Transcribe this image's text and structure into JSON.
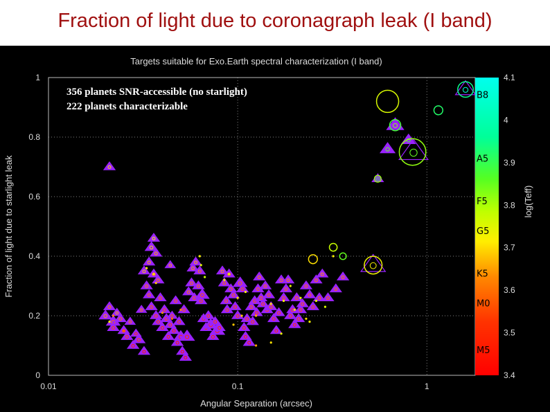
{
  "slide_title": "Fraction of light due to coronagraph leak (I band)",
  "colors": {
    "title": "#a01010",
    "background": "#000000",
    "triangle": "#9a22ff",
    "grid": "#7f7f7f"
  },
  "chart_data": {
    "type": "scatter",
    "title": "Targets suitable for Exo.Earth spectral characterization (I band)",
    "xlabel": "Angular Separation (arcsec)",
    "ylabel": "Fraction of light due to starlight leak",
    "x_scale": "log",
    "xlim": [
      0.01,
      1.8
    ],
    "ylim": [
      0,
      1
    ],
    "x_ticks": [
      {
        "v": 0.01,
        "label": "0.01"
      },
      {
        "v": 0.1,
        "label": "0.1"
      },
      {
        "v": 1,
        "label": "1"
      }
    ],
    "y_ticks": [
      {
        "v": 0,
        "label": "0"
      },
      {
        "v": 0.2,
        "label": "0.2"
      },
      {
        "v": 0.4,
        "label": "0.4"
      },
      {
        "v": 0.6,
        "label": "0.6"
      },
      {
        "v": 0.8,
        "label": "0.8"
      },
      {
        "v": 1,
        "label": "1"
      }
    ],
    "grid": true,
    "annotations": [
      "356  planets SNR-accessible (no starlight)",
      "222 planets characterizable"
    ],
    "colorbar": {
      "label": "log(Teff)",
      "range": [
        3.4,
        4.1
      ],
      "ticks": [
        {
          "v": 4.1,
          "label": "4.1"
        },
        {
          "v": 4.0,
          "label": "4"
        },
        {
          "v": 3.9,
          "label": "3.9"
        },
        {
          "v": 3.8,
          "label": "3.8"
        },
        {
          "v": 3.7,
          "label": "3.7"
        },
        {
          "v": 3.6,
          "label": "3.6"
        },
        {
          "v": 3.5,
          "label": "3.5"
        },
        {
          "v": 3.4,
          "label": "3.4"
        }
      ],
      "spectral_types": [
        {
          "label": "B8",
          "v": 4.06
        },
        {
          "label": "A5",
          "v": 3.91
        },
        {
          "label": "F5",
          "v": 3.81
        },
        {
          "label": "G5",
          "v": 3.74
        },
        {
          "label": "K5",
          "v": 3.64
        },
        {
          "label": "M0",
          "v": 3.57
        },
        {
          "label": "M5",
          "v": 3.46
        }
      ]
    },
    "series": [
      {
        "kind": "triangle",
        "points": [
          [
            0.021,
            0.7,
            3.7,
            1.0
          ],
          [
            0.02,
            0.2,
            3.65,
            1.1
          ],
          [
            0.021,
            0.23,
            3.62,
            1.0
          ],
          [
            0.022,
            0.18,
            3.6,
            1.2
          ],
          [
            0.023,
            0.21,
            3.66,
            0.9
          ],
          [
            0.022,
            0.16,
            3.55,
            1.0
          ],
          [
            0.024,
            0.19,
            3.6,
            1.0
          ],
          [
            0.025,
            0.15,
            3.58,
            1.0
          ],
          [
            0.026,
            0.13,
            3.55,
            1.0
          ],
          [
            0.027,
            0.18,
            3.6,
            0.9
          ],
          [
            0.028,
            0.1,
            3.5,
            1.0
          ],
          [
            0.029,
            0.14,
            3.52,
            0.9
          ],
          [
            0.03,
            0.12,
            3.55,
            1.1
          ],
          [
            0.031,
            0.22,
            3.62,
            0.9
          ],
          [
            0.032,
            0.08,
            3.48,
            1.0
          ],
          [
            0.032,
            0.35,
            3.68,
            1.0
          ],
          [
            0.033,
            0.3,
            3.62,
            1.0
          ],
          [
            0.034,
            0.38,
            3.66,
            1.0
          ],
          [
            0.034,
            0.27,
            3.6,
            1.0
          ],
          [
            0.035,
            0.23,
            3.58,
            1.0
          ],
          [
            0.035,
            0.43,
            3.7,
            1.1
          ],
          [
            0.036,
            0.46,
            3.72,
            1.0
          ],
          [
            0.036,
            0.34,
            3.64,
            1.0
          ],
          [
            0.037,
            0.41,
            3.66,
            1.0
          ],
          [
            0.037,
            0.2,
            3.56,
            1.0
          ],
          [
            0.038,
            0.32,
            3.62,
            1.0
          ],
          [
            0.038,
            0.18,
            3.55,
            1.0
          ],
          [
            0.039,
            0.26,
            3.58,
            1.0
          ],
          [
            0.04,
            0.16,
            3.52,
            1.0
          ],
          [
            0.041,
            0.22,
            3.56,
            1.0
          ],
          [
            0.042,
            0.19,
            3.56,
            1.0
          ],
          [
            0.043,
            0.13,
            3.5,
            1.0
          ],
          [
            0.044,
            0.37,
            3.65,
            0.9
          ],
          [
            0.044,
            0.17,
            3.55,
            1.0
          ],
          [
            0.045,
            0.2,
            3.58,
            0.9
          ],
          [
            0.046,
            0.15,
            3.52,
            1.0
          ],
          [
            0.047,
            0.25,
            3.58,
            1.0
          ],
          [
            0.048,
            0.11,
            3.5,
            1.0
          ],
          [
            0.049,
            0.18,
            3.55,
            1.0
          ],
          [
            0.05,
            0.13,
            3.5,
            1.2
          ],
          [
            0.051,
            0.08,
            3.46,
            1.0
          ],
          [
            0.052,
            0.22,
            3.58,
            1.0
          ],
          [
            0.053,
            0.06,
            3.45,
            1.0
          ],
          [
            0.054,
            0.13,
            3.5,
            1.3
          ],
          [
            0.055,
            0.28,
            3.62,
            1.0
          ],
          [
            0.057,
            0.31,
            3.6,
            1.0
          ],
          [
            0.058,
            0.36,
            3.64,
            1.0
          ],
          [
            0.059,
            0.26,
            3.58,
            1.0
          ],
          [
            0.06,
            0.38,
            3.66,
            1.0
          ],
          [
            0.062,
            0.3,
            3.6,
            1.0
          ],
          [
            0.063,
            0.35,
            3.62,
            1.0
          ],
          [
            0.064,
            0.25,
            3.56,
            1.0
          ],
          [
            0.065,
            0.27,
            3.57,
            1.2
          ],
          [
            0.066,
            0.19,
            3.52,
            1.0
          ],
          [
            0.068,
            0.16,
            3.52,
            1.0
          ],
          [
            0.07,
            0.2,
            3.55,
            1.0
          ],
          [
            0.072,
            0.17,
            3.52,
            1.2
          ],
          [
            0.074,
            0.13,
            3.5,
            1.0
          ],
          [
            0.076,
            0.18,
            3.54,
            1.0
          ],
          [
            0.078,
            0.15,
            3.5,
            1.3
          ],
          [
            0.08,
            0.16,
            3.52,
            1.0
          ],
          [
            0.083,
            0.35,
            3.64,
            1.0
          ],
          [
            0.085,
            0.31,
            3.6,
            1.0
          ],
          [
            0.087,
            0.25,
            3.58,
            1.0
          ],
          [
            0.088,
            0.22,
            3.56,
            1.0
          ],
          [
            0.09,
            0.34,
            3.62,
            1.0
          ],
          [
            0.092,
            0.29,
            3.6,
            1.0
          ],
          [
            0.095,
            0.27,
            3.58,
            1.0
          ],
          [
            0.097,
            0.23,
            3.55,
            1.0
          ],
          [
            0.1,
            0.2,
            3.55,
            1.0
          ],
          [
            0.103,
            0.31,
            3.6,
            1.2
          ],
          [
            0.106,
            0.29,
            3.58,
            1.0
          ],
          [
            0.108,
            0.16,
            3.52,
            1.0
          ],
          [
            0.11,
            0.13,
            3.5,
            1.0
          ],
          [
            0.112,
            0.19,
            3.55,
            1.0
          ],
          [
            0.115,
            0.11,
            3.48,
            1.0
          ],
          [
            0.118,
            0.23,
            3.58,
            1.0
          ],
          [
            0.12,
            0.18,
            3.54,
            1.0
          ],
          [
            0.123,
            0.25,
            3.57,
            1.0
          ],
          [
            0.126,
            0.21,
            3.55,
            1.0
          ],
          [
            0.128,
            0.29,
            3.6,
            1.0
          ],
          [
            0.13,
            0.33,
            3.62,
            1.0
          ],
          [
            0.133,
            0.26,
            3.58,
            1.0
          ],
          [
            0.136,
            0.24,
            3.56,
            1.0
          ],
          [
            0.14,
            0.3,
            3.6,
            1.0
          ],
          [
            0.143,
            0.22,
            3.56,
            1.0
          ],
          [
            0.146,
            0.27,
            3.58,
            1.0
          ],
          [
            0.15,
            0.23,
            3.58,
            1.0
          ],
          [
            0.155,
            0.19,
            3.54,
            1.0
          ],
          [
            0.16,
            0.15,
            3.52,
            1.0
          ],
          [
            0.165,
            0.21,
            3.55,
            1.0
          ],
          [
            0.17,
            0.32,
            3.62,
            1.0
          ],
          [
            0.175,
            0.26,
            3.58,
            1.0
          ],
          [
            0.18,
            0.29,
            3.6,
            1.0
          ],
          [
            0.185,
            0.32,
            3.62,
            1.0
          ],
          [
            0.19,
            0.2,
            3.55,
            1.0
          ],
          [
            0.195,
            0.22,
            3.56,
            1.0
          ],
          [
            0.2,
            0.17,
            3.52,
            1.0
          ],
          [
            0.205,
            0.26,
            3.58,
            1.0
          ],
          [
            0.21,
            0.19,
            3.55,
            1.0
          ],
          [
            0.215,
            0.22,
            3.56,
            1.0
          ],
          [
            0.22,
            0.24,
            3.57,
            1.0
          ],
          [
            0.23,
            0.3,
            3.6,
            1.0
          ],
          [
            0.24,
            0.27,
            3.58,
            1.0
          ],
          [
            0.25,
            0.23,
            3.57,
            1.0
          ],
          [
            0.26,
            0.32,
            3.62,
            1.0
          ],
          [
            0.27,
            0.26,
            3.58,
            1.0
          ],
          [
            0.28,
            0.34,
            3.64,
            1.0
          ],
          [
            0.3,
            0.26,
            3.58,
            1.0
          ],
          [
            0.33,
            0.29,
            3.6,
            1.0
          ],
          [
            0.36,
            0.33,
            3.62,
            1.0
          ],
          [
            0.52,
            0.37,
            3.72,
            2.2
          ],
          [
            0.55,
            0.66,
            3.88,
            1.0
          ],
          [
            0.62,
            0.76,
            3.85,
            1.3
          ],
          [
            0.68,
            0.84,
            3.82,
            1.5
          ],
          [
            0.85,
            0.75,
            3.85,
            2.6
          ],
          [
            0.8,
            0.79,
            3.88,
            1.2
          ],
          [
            1.6,
            0.96,
            4.06,
            1.8
          ]
        ]
      },
      {
        "kind": "circle",
        "points": [
          [
            0.62,
            0.92,
            3.76,
            2.0
          ],
          [
            1.15,
            0.89,
            3.92,
            0.8
          ],
          [
            0.84,
            0.75,
            3.82,
            2.4
          ],
          [
            0.52,
            0.37,
            3.73,
            1.6
          ],
          [
            0.32,
            0.43,
            3.78,
            0.7
          ],
          [
            0.36,
            0.4,
            3.85,
            0.6
          ],
          [
            0.25,
            0.39,
            3.7,
            0.8
          ],
          [
            1.6,
            0.96,
            3.95,
            1.4
          ],
          [
            0.68,
            0.84,
            3.88,
            1.0
          ],
          [
            0.55,
            0.66,
            3.82,
            0.6
          ]
        ]
      },
      {
        "kind": "dot",
        "points": [
          [
            0.021,
            0.18,
            3.72,
            1.0
          ],
          [
            0.022,
            0.2,
            3.62,
            1.0
          ],
          [
            0.025,
            0.15,
            3.58,
            1.0
          ],
          [
            0.033,
            0.36,
            3.72,
            1.0
          ],
          [
            0.036,
            0.34,
            3.7,
            1.0
          ],
          [
            0.037,
            0.31,
            3.68,
            1.0
          ],
          [
            0.04,
            0.21,
            3.64,
            1.0
          ],
          [
            0.045,
            0.19,
            3.6,
            1.0
          ],
          [
            0.05,
            0.22,
            3.62,
            1.0
          ],
          [
            0.063,
            0.4,
            3.72,
            1.0
          ],
          [
            0.064,
            0.37,
            3.75,
            1.0
          ],
          [
            0.067,
            0.33,
            3.78,
            1.0
          ],
          [
            0.085,
            0.32,
            3.72,
            1.0
          ],
          [
            0.09,
            0.34,
            3.75,
            1.0
          ],
          [
            0.1,
            0.26,
            3.7,
            1.0
          ],
          [
            0.105,
            0.2,
            3.68,
            1.0
          ],
          [
            0.11,
            0.28,
            3.72,
            1.0
          ],
          [
            0.125,
            0.2,
            3.66,
            1.0
          ],
          [
            0.15,
            0.24,
            3.7,
            1.0
          ],
          [
            0.175,
            0.25,
            3.72,
            1.0
          ],
          [
            0.19,
            0.3,
            3.74,
            1.0
          ],
          [
            0.2,
            0.22,
            3.7,
            1.0
          ],
          [
            0.215,
            0.26,
            3.74,
            1.0
          ],
          [
            0.23,
            0.19,
            3.7,
            1.0
          ],
          [
            0.24,
            0.18,
            3.72,
            1.0
          ],
          [
            0.26,
            0.25,
            3.74,
            1.0
          ],
          [
            0.29,
            0.23,
            3.76,
            1.0
          ],
          [
            0.32,
            0.4,
            3.72,
            1.0
          ],
          [
            0.17,
            0.14,
            3.74,
            1.0
          ],
          [
            0.15,
            0.11,
            3.7,
            1.0
          ],
          [
            0.125,
            0.1,
            3.65,
            1.0
          ],
          [
            0.095,
            0.17,
            3.68,
            1.0
          ]
        ]
      }
    ]
  }
}
